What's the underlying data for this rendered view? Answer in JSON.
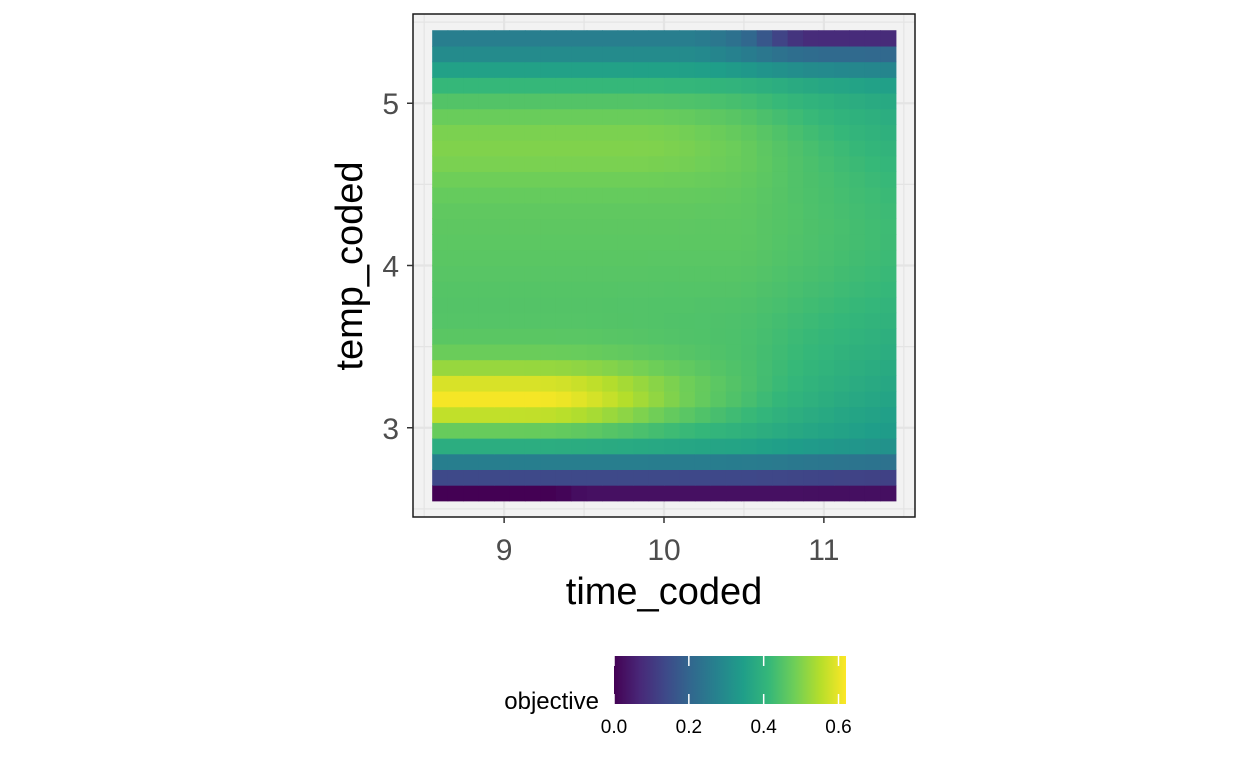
{
  "chart_data": {
    "type": "heatmap",
    "title": "",
    "xlabel": "time_coded",
    "ylabel": "temp_coded",
    "xlim": [
      8.43,
      11.57
    ],
    "ylim": [
      2.45,
      5.55
    ],
    "x_ticks": [
      "9",
      "10",
      "11"
    ],
    "y_ticks": [
      "3",
      "4",
      "5"
    ],
    "x_tick_values": [
      9,
      10,
      11
    ],
    "y_tick_values": [
      3,
      4,
      5
    ],
    "x_range": [
      8.55,
      11.45
    ],
    "y_range": [
      2.55,
      5.45
    ],
    "cols": 30,
    "rows": 30,
    "grid": true,
    "colormap": "viridis",
    "color_stops": [
      "#440154",
      "#482878",
      "#3e4989",
      "#31688e",
      "#26828e",
      "#1f9e89",
      "#35b779",
      "#6ece58",
      "#b5de2b",
      "#fde725"
    ],
    "panel_background": "#f2f2f2",
    "gridline_color": "#e4e4e4",
    "key_values": {
      "max_value": 0.62,
      "max_location": [
        9.2,
        3.15
      ],
      "upper_ridge_value": 0.52,
      "upper_ridge_location": [
        9.5,
        4.85
      ],
      "center_value": 0.47,
      "bottom_left_corner": 0.0,
      "top_right_corner": 0.0
    },
    "legend": {
      "title": "objective",
      "position": "bottom",
      "range": [
        0,
        0.62
      ],
      "ticks": [
        "0.0",
        "0.2",
        "0.4",
        "0.6"
      ],
      "tick_values": [
        0,
        0.2,
        0.4,
        0.6
      ]
    }
  }
}
